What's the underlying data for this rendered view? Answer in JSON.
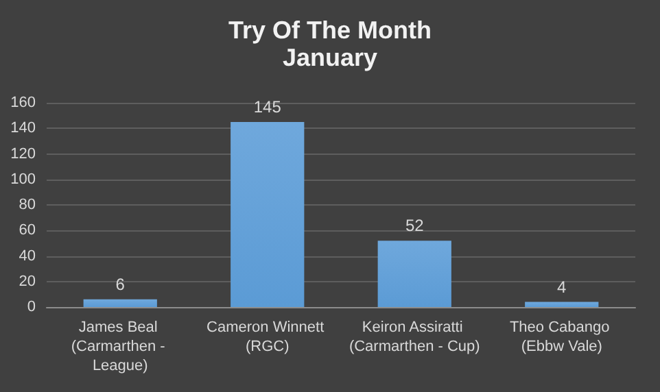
{
  "chart_data": {
    "type": "bar",
    "title": "Try Of The Month",
    "subtitle": "January",
    "categories": [
      "James Beal (Carmarthen - League)",
      "Cameron Winnett (RGC)",
      "Keiron Assiratti (Carmarthen - Cup)",
      "Theo Cabango (Ebbw Vale)"
    ],
    "values": [
      6,
      145,
      52,
      4
    ],
    "color": "#5b9bd5",
    "ylim": [
      0,
      160
    ],
    "yticks": [
      0,
      20,
      40,
      60,
      80,
      100,
      120,
      140,
      160
    ],
    "grid": "y",
    "data_labels": true
  }
}
